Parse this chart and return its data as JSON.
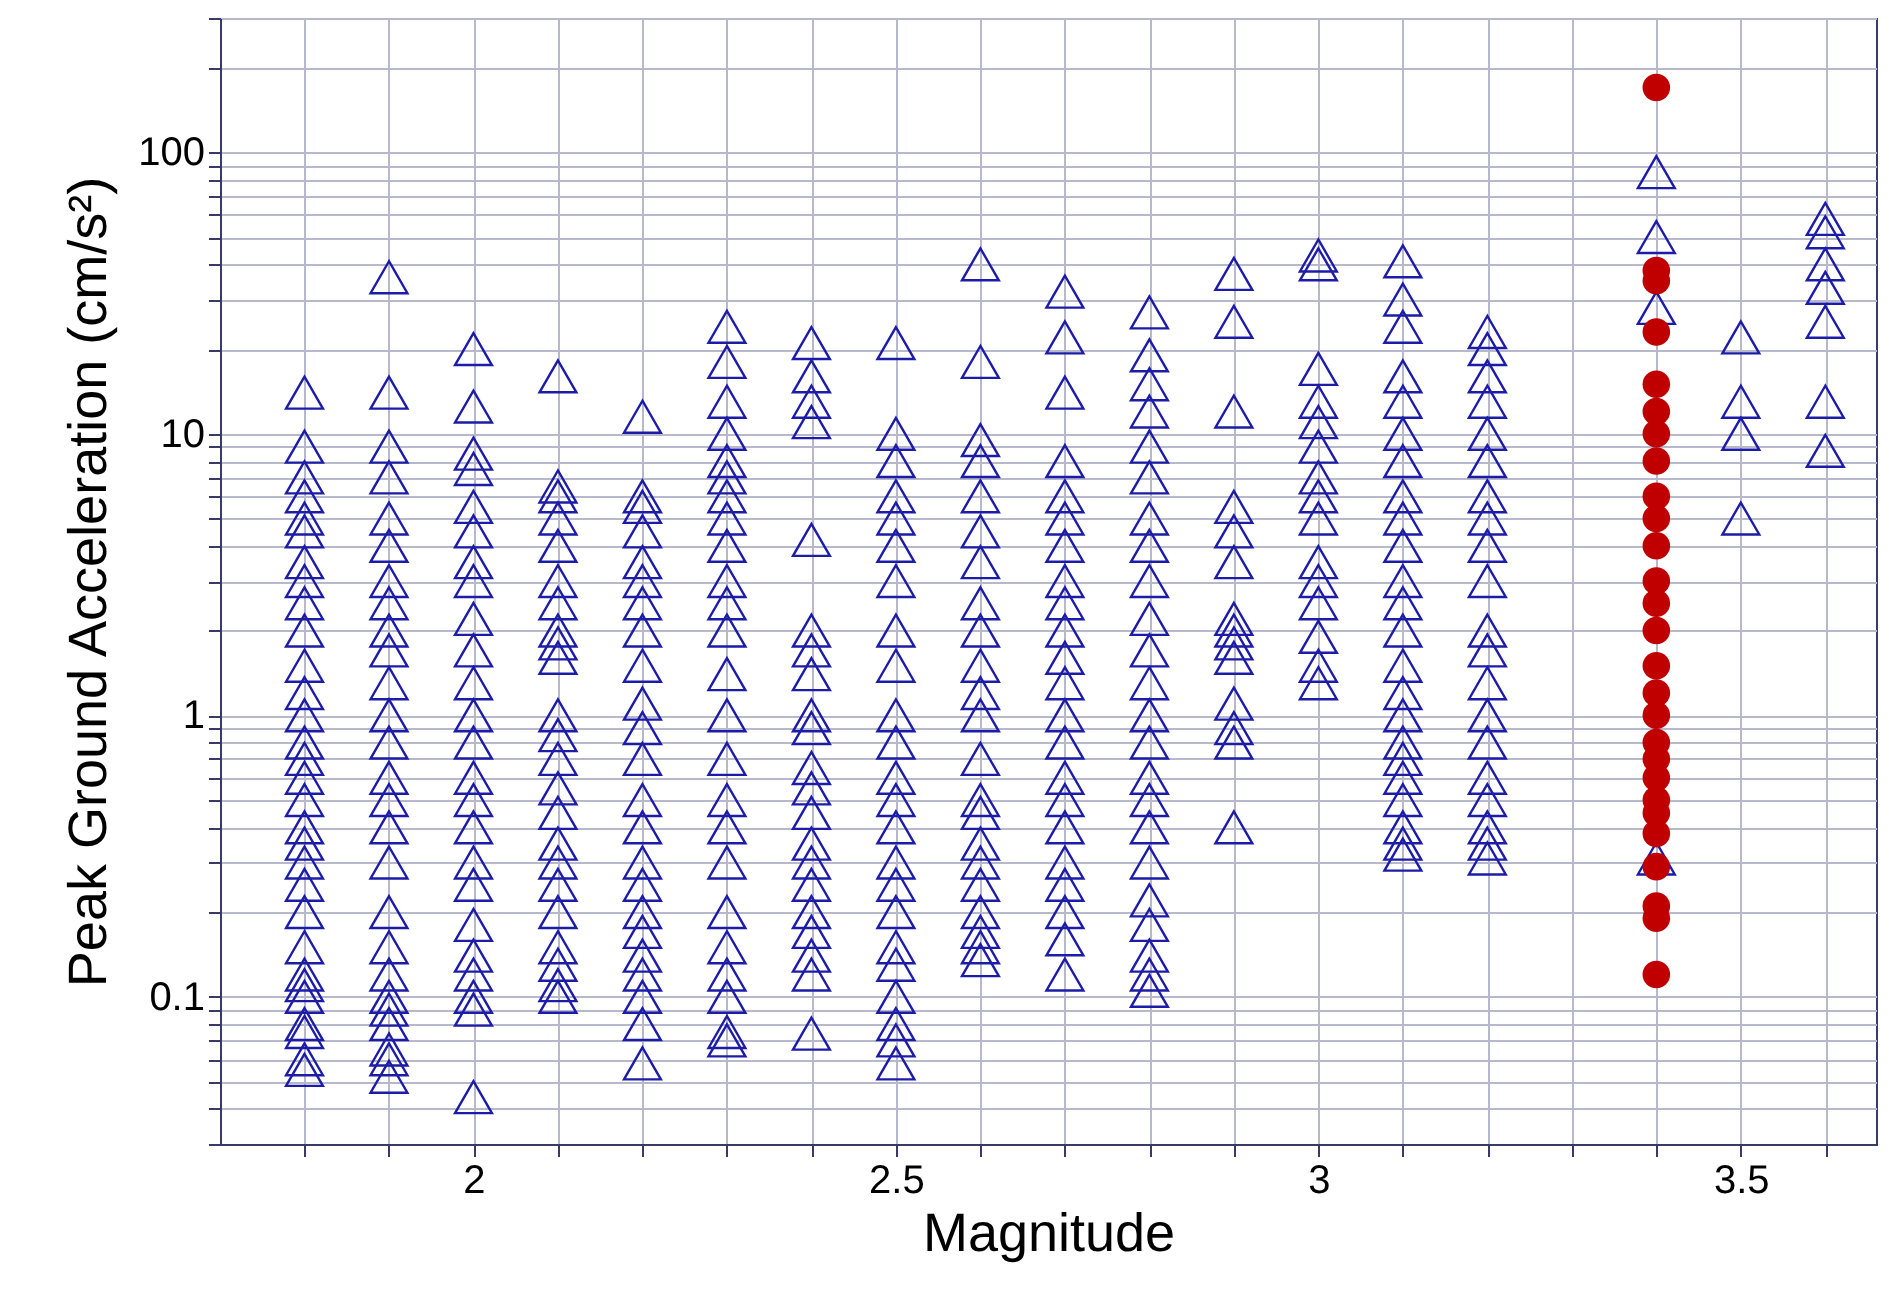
{
  "chart_data": {
    "type": "scatter",
    "xlabel": "Magnitude",
    "ylabel": "Peak Ground Acceleration (cm/s²)",
    "log": "y",
    "grid": true,
    "xlim": [
      1.7,
      3.66
    ],
    "xticks": [
      {
        "value": 1.8,
        "label": null
      },
      {
        "value": 1.9,
        "label": null
      },
      2,
      {
        "value": 2.1,
        "label": null
      },
      {
        "value": 2.2,
        "label": null
      },
      {
        "value": 2.3,
        "label": null
      },
      {
        "value": 2.4,
        "label": null
      },
      2.5,
      {
        "value": 2.6,
        "label": null
      },
      {
        "value": 2.7,
        "label": null
      },
      {
        "value": 2.8,
        "label": null
      },
      {
        "value": 2.9,
        "label": null
      },
      3,
      {
        "value": 3.1,
        "label": null
      },
      {
        "value": 3.2,
        "label": null
      },
      {
        "value": 3.3,
        "label": null
      },
      {
        "value": 3.4,
        "label": null
      },
      3.5,
      {
        "value": 3.6,
        "label": null
      }
    ],
    "ylim": [
      0.03,
      300
    ],
    "yticks": [
      {
        "value": 0.03,
        "label": null
      },
      {
        "value": 0.04,
        "label": null
      },
      {
        "value": 0.05,
        "label": null
      },
      {
        "value": 0.06,
        "label": null
      },
      {
        "value": 0.07,
        "label": null
      },
      {
        "value": 0.08,
        "label": null
      },
      {
        "value": 0.09,
        "label": null
      },
      0.1,
      {
        "value": 0.2,
        "label": null
      },
      {
        "value": 0.3,
        "label": null
      },
      {
        "value": 0.4,
        "label": null
      },
      {
        "value": 0.5,
        "label": null
      },
      {
        "value": 0.6,
        "label": null
      },
      {
        "value": 0.7,
        "label": null
      },
      {
        "value": 0.8,
        "label": null
      },
      {
        "value": 0.9,
        "label": null
      },
      1,
      {
        "value": 2,
        "label": null
      },
      {
        "value": 3,
        "label": null
      },
      {
        "value": 4,
        "label": null
      },
      {
        "value": 5,
        "label": null
      },
      {
        "value": 6,
        "label": null
      },
      {
        "value": 7,
        "label": null
      },
      {
        "value": 8,
        "label": null
      },
      {
        "value": 9,
        "label": null
      },
      10,
      {
        "value": 20,
        "label": null
      },
      {
        "value": 30,
        "label": null
      },
      {
        "value": 40,
        "label": null
      },
      {
        "value": 50,
        "label": null
      },
      {
        "value": 60,
        "label": null
      },
      {
        "value": 70,
        "label": null
      },
      {
        "value": 80,
        "label": null
      },
      {
        "value": 90,
        "label": null
      },
      100,
      {
        "value": 200,
        "label": null
      },
      {
        "value": 300,
        "label": null
      }
    ],
    "series": [
      {
        "color": "#1c1ca8",
        "marker": "triangle",
        "x": [
          1.8,
          1.8,
          1.8,
          1.8,
          1.8,
          1.8,
          1.8,
          1.8,
          1.8,
          1.8,
          1.8,
          1.8,
          1.8,
          1.8,
          1.8,
          1.8,
          1.8,
          1.8,
          1.8,
          1.8,
          1.8,
          1.8,
          1.8,
          1.8,
          1.8,
          1.8,
          1.8,
          1.8,
          1.8,
          1.8,
          1.9,
          1.9,
          1.9,
          1.9,
          1.9,
          1.9,
          1.9,
          1.9,
          1.9,
          1.9,
          1.9,
          1.9,
          1.9,
          1.9,
          1.9,
          1.9,
          1.9,
          1.9,
          1.9,
          1.9,
          1.9,
          1.9,
          1.9,
          1.9,
          1.9,
          1.9,
          2,
          2,
          2,
          2,
          2,
          2,
          2,
          2,
          2,
          2,
          2,
          2,
          2,
          2,
          2,
          2,
          2,
          2,
          2,
          2,
          2,
          2,
          2,
          2,
          2.1,
          2.1,
          2.1,
          2.1,
          2.1,
          2.1,
          2.1,
          2.1,
          2.1,
          2.1,
          2.1,
          2.1,
          2.1,
          2.1,
          2.1,
          2.1,
          2.1,
          2.1,
          2.1,
          2.1,
          2.1,
          2.1,
          2.1,
          2.2,
          2.2,
          2.2,
          2.2,
          2.2,
          2.2,
          2.2,
          2.2,
          2.2,
          2.2,
          2.2,
          2.2,
          2.2,
          2.2,
          2.2,
          2.2,
          2.2,
          2.2,
          2.2,
          2.2,
          2.2,
          2.2,
          2.2,
          2.3,
          2.3,
          2.3,
          2.3,
          2.3,
          2.3,
          2.3,
          2.3,
          2.3,
          2.3,
          2.3,
          2.3,
          2.3,
          2.3,
          2.3,
          2.3,
          2.3,
          2.3,
          2.3,
          2.3,
          2.3,
          2.3,
          2.3,
          2.3,
          2.4,
          2.4,
          2.4,
          2.4,
          2.4,
          2.4,
          2.4,
          2.4,
          2.4,
          2.4,
          2.4,
          2.4,
          2.4,
          2.4,
          2.4,
          2.4,
          2.4,
          2.4,
          2.4,
          2.4,
          2.4,
          2.5,
          2.5,
          2.5,
          2.5,
          2.5,
          2.5,
          2.5,
          2.5,
          2.5,
          2.5,
          2.5,
          2.5,
          2.5,
          2.5,
          2.5,
          2.5,
          2.5,
          2.5,
          2.5,
          2.5,
          2.5,
          2.5,
          2.5,
          2.6,
          2.6,
          2.6,
          2.6,
          2.6,
          2.6,
          2.6,
          2.6,
          2.6,
          2.6,
          2.6,
          2.6,
          2.6,
          2.6,
          2.6,
          2.6,
          2.6,
          2.6,
          2.6,
          2.6,
          2.6,
          2.6,
          2.7,
          2.7,
          2.7,
          2.7,
          2.7,
          2.7,
          2.7,
          2.7,
          2.7,
          2.7,
          2.7,
          2.7,
          2.7,
          2.7,
          2.7,
          2.7,
          2.7,
          2.7,
          2.7,
          2.7,
          2.7,
          2.7,
          2.8,
          2.8,
          2.8,
          2.8,
          2.8,
          2.8,
          2.8,
          2.8,
          2.8,
          2.8,
          2.8,
          2.8,
          2.8,
          2.8,
          2.8,
          2.8,
          2.8,
          2.8,
          2.8,
          2.8,
          2.8,
          2.8,
          2.8,
          2.9,
          2.9,
          2.9,
          2.9,
          2.9,
          2.9,
          2.9,
          2.9,
          2.9,
          2.9,
          2.9,
          2.9,
          2.9,
          2.9,
          3,
          3,
          3,
          3,
          3,
          3,
          3,
          3,
          3,
          3,
          3,
          3,
          3,
          3,
          3,
          3.1,
          3.1,
          3.1,
          3.1,
          3.1,
          3.1,
          3.1,
          3.1,
          3.1,
          3.1,
          3.1,
          3.1,
          3.1,
          3.1,
          3.1,
          3.1,
          3.1,
          3.1,
          3.1,
          3.1,
          3.1,
          3.1,
          3.1,
          3.2,
          3.2,
          3.2,
          3.2,
          3.2,
          3.2,
          3.2,
          3.2,
          3.2,
          3.2,
          3.2,
          3.2,
          3.2,
          3.2,
          3.2,
          3.2,
          3.2,
          3.2,
          3.2,
          3.2,
          3.4,
          3.4,
          3.4,
          3.4,
          3.5,
          3.5,
          3.5,
          3.5,
          3.6,
          3.6,
          3.6,
          3.6,
          3.6,
          3.6,
          3.6
        ],
        "values": [
          0.055,
          0.06,
          0.075,
          0.08,
          0.1,
          0.11,
          0.12,
          0.15,
          0.2,
          0.25,
          0.3,
          0.35,
          0.4,
          0.5,
          0.6,
          0.7,
          0.8,
          1,
          1.2,
          1.5,
          2,
          2.5,
          3,
          3.5,
          4.5,
          5,
          6,
          7,
          9,
          14,
          0.052,
          0.06,
          0.065,
          0.08,
          0.09,
          0.1,
          0.12,
          0.15,
          0.2,
          0.3,
          0.4,
          0.5,
          0.6,
          0.8,
          1,
          1.3,
          1.7,
          2,
          2.5,
          3,
          4,
          5,
          7,
          9,
          14,
          36,
          0.044,
          0.09,
          0.1,
          0.12,
          0.14,
          0.18,
          0.25,
          0.3,
          0.4,
          0.5,
          0.6,
          0.8,
          1,
          1.3,
          1.7,
          2.2,
          3,
          3.5,
          4.5,
          5.5,
          7.5,
          8.5,
          12.5,
          20,
          0.1,
          0.11,
          0.13,
          0.15,
          0.2,
          0.25,
          0.3,
          0.35,
          0.45,
          0.55,
          0.7,
          0.85,
          1,
          1.6,
          1.8,
          2,
          2.5,
          3,
          4,
          5,
          6,
          6.5,
          16,
          0.058,
          0.08,
          0.1,
          0.12,
          0.14,
          0.17,
          0.2,
          0.25,
          0.3,
          0.4,
          0.5,
          0.7,
          0.9,
          1.1,
          1.5,
          2,
          2.5,
          3,
          3.5,
          4.5,
          5.5,
          6,
          11.5,
          0.07,
          0.075,
          0.1,
          0.12,
          0.15,
          0.2,
          0.3,
          0.4,
          0.5,
          0.7,
          1,
          1.4,
          2,
          2.5,
          3,
          4,
          5,
          6,
          7,
          8,
          10,
          13,
          18,
          24,
          0.074,
          0.12,
          0.14,
          0.17,
          0.2,
          0.25,
          0.3,
          0.35,
          0.45,
          0.55,
          0.65,
          0.9,
          1,
          1.4,
          1.7,
          2,
          4.2,
          11,
          13,
          16,
          21,
          0.058,
          0.07,
          0.08,
          0.1,
          0.13,
          0.15,
          0.2,
          0.25,
          0.3,
          0.4,
          0.5,
          0.6,
          0.8,
          1,
          1.5,
          2,
          3,
          4,
          5,
          6,
          8,
          10,
          21,
          0.135,
          0.15,
          0.17,
          0.2,
          0.25,
          0.3,
          0.35,
          0.45,
          0.5,
          0.7,
          1,
          1.2,
          1.5,
          2,
          2.5,
          3.5,
          4.5,
          6,
          8,
          9.5,
          18,
          40,
          0.12,
          0.16,
          0.2,
          0.25,
          0.3,
          0.4,
          0.5,
          0.6,
          0.8,
          1,
          1.3,
          1.6,
          2,
          2.5,
          3,
          4,
          5,
          6,
          8,
          14,
          22,
          32,
          0.105,
          0.12,
          0.14,
          0.18,
          0.22,
          0.3,
          0.4,
          0.5,
          0.6,
          0.8,
          1,
          1.3,
          1.7,
          2.2,
          3,
          4,
          5,
          7,
          9,
          12,
          15,
          19,
          27,
          0.4,
          0.8,
          0.9,
          1.1,
          1.6,
          1.8,
          2,
          2.2,
          3.5,
          4.5,
          5.5,
          12,
          25,
          37,
          1.3,
          1.5,
          1.9,
          2.5,
          3,
          3.5,
          5,
          6,
          7,
          9,
          11,
          13,
          17,
          40,
          43,
          0.32,
          0.35,
          0.4,
          0.5,
          0.6,
          0.7,
          0.8,
          1,
          1.2,
          1.5,
          2,
          2.5,
          3,
          4,
          5,
          6,
          8,
          10,
          13,
          16,
          24,
          30,
          41,
          0.31,
          0.35,
          0.4,
          0.5,
          0.6,
          0.8,
          1,
          1.3,
          1.7,
          2,
          3,
          4,
          5,
          6,
          8,
          10,
          13,
          16,
          20,
          23,
          0.31,
          28,
          50,
          85,
          5,
          10,
          13,
          22,
          8.7,
          13,
          25,
          33,
          40,
          52,
          58
        ]
      },
      {
        "color": "#c00000",
        "marker": "circle",
        "x": [
          3.4,
          3.4,
          3.4,
          3.4,
          3.4,
          3.4,
          3.4,
          3.4,
          3.4,
          3.4,
          3.4,
          3.4,
          3.4,
          3.4,
          3.4,
          3.4,
          3.4,
          3.4,
          3.4,
          3.4,
          3.4,
          3.4,
          3.4,
          3.4,
          3.4,
          3.4,
          3.4
        ],
        "values": [
          0.12,
          0.19,
          0.21,
          0.29,
          0.38,
          0.45,
          0.5,
          0.6,
          0.7,
          0.8,
          1,
          1.2,
          1.5,
          2,
          2.5,
          3,
          4,
          5,
          6,
          8,
          10,
          12,
          15,
          23,
          35,
          38,
          170
        ]
      }
    ]
  }
}
